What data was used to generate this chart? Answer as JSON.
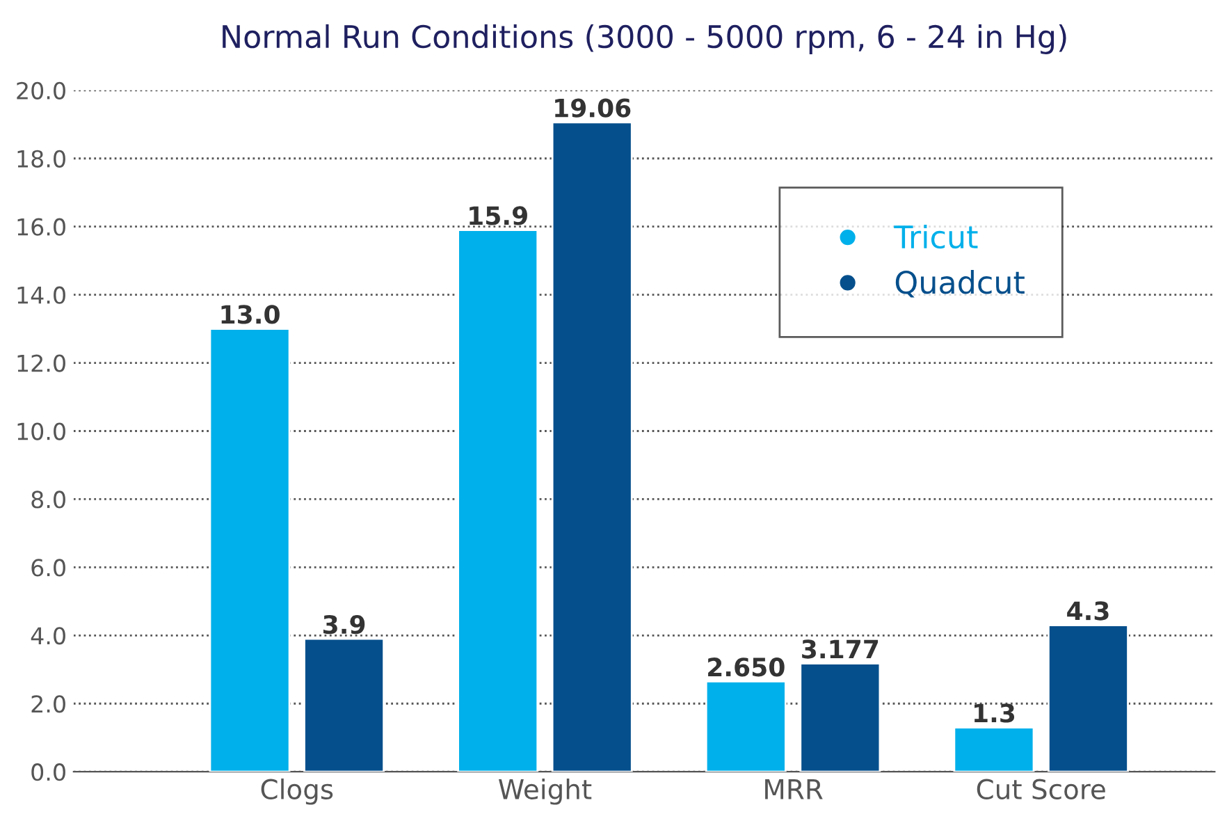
{
  "chart_data": {
    "type": "bar",
    "title": "Normal Run Conditions (3000 - 5000 rpm, 6 - 24 in Hg)",
    "categories": [
      "Clogs",
      "Weight",
      "MRR",
      "Cut Score"
    ],
    "series": [
      {
        "name": "Tricut",
        "color": "#00b0ea",
        "values": [
          13.0,
          15.9,
          2.65,
          1.3
        ],
        "value_labels": [
          "13.0",
          "15.9",
          "2.650",
          "1.3"
        ]
      },
      {
        "name": "Quadcut",
        "color": "#054f8c",
        "values": [
          3.9,
          19.06,
          3.177,
          4.3
        ],
        "value_labels": [
          "3.9",
          "19.06",
          "3.177",
          "4.3"
        ]
      }
    ],
    "ylim": [
      0,
      20
    ],
    "yticks": [
      {
        "value": 0,
        "label": "0.0"
      },
      {
        "value": 2,
        "label": "2.0"
      },
      {
        "value": 4,
        "label": "4.0"
      },
      {
        "value": 6,
        "label": "6.0"
      },
      {
        "value": 8,
        "label": "8.0"
      },
      {
        "value": 10,
        "label": "10.0"
      },
      {
        "value": 12,
        "label": "12.0"
      },
      {
        "value": 14,
        "label": "14.0"
      },
      {
        "value": 16,
        "label": "16.0"
      },
      {
        "value": 18,
        "label": "18.0"
      },
      {
        "value": 20,
        "label": "20.0"
      }
    ],
    "grid": "y",
    "legend": "top right",
    "marker": "circle"
  }
}
